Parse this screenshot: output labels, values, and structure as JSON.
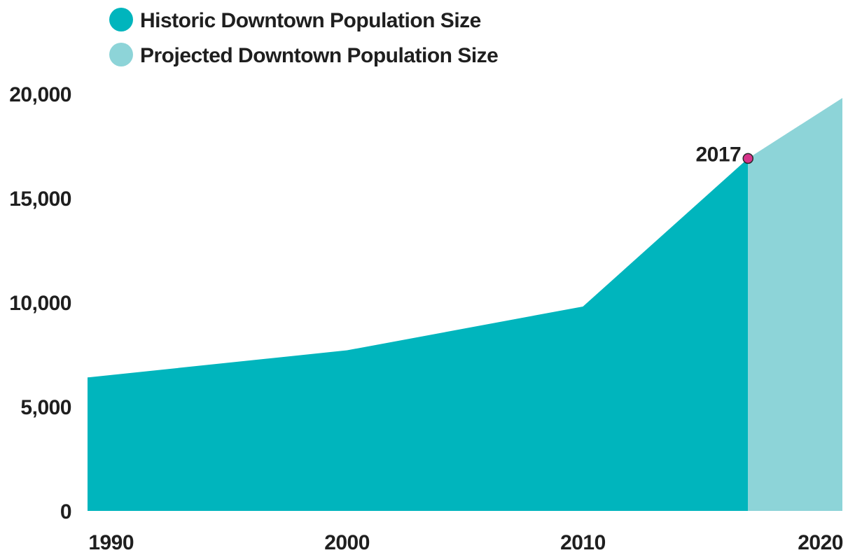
{
  "chart_data": {
    "type": "area",
    "title": "",
    "xlabel": "",
    "ylabel": "",
    "xlim": [
      1989,
      2021
    ],
    "ylim": [
      0,
      20000
    ],
    "grid": false,
    "legend_position": "top-left",
    "x_ticks": [
      1990,
      2000,
      2010,
      2020
    ],
    "x_tick_labels": [
      "1990",
      "2000",
      "2010",
      "2020"
    ],
    "y_ticks": [
      0,
      5000,
      10000,
      15000,
      20000
    ],
    "y_tick_labels": [
      "0",
      "5,000",
      "10,000",
      "15,000",
      "20,000"
    ],
    "series": [
      {
        "name": "Historic Downtown Population Size",
        "color": "#00b5bd",
        "x": [
          1989,
          2000,
          2010,
          2017
        ],
        "y": [
          6400,
          7700,
          9800,
          16900
        ]
      },
      {
        "name": "Projected Downtown Population Size",
        "color": "#8dd4d8",
        "x": [
          2017,
          2021
        ],
        "y": [
          16900,
          19800
        ]
      }
    ],
    "annotations": [
      {
        "label": "2017",
        "x": 2017,
        "y": 16900,
        "marker_color": "#d6338a"
      }
    ]
  }
}
